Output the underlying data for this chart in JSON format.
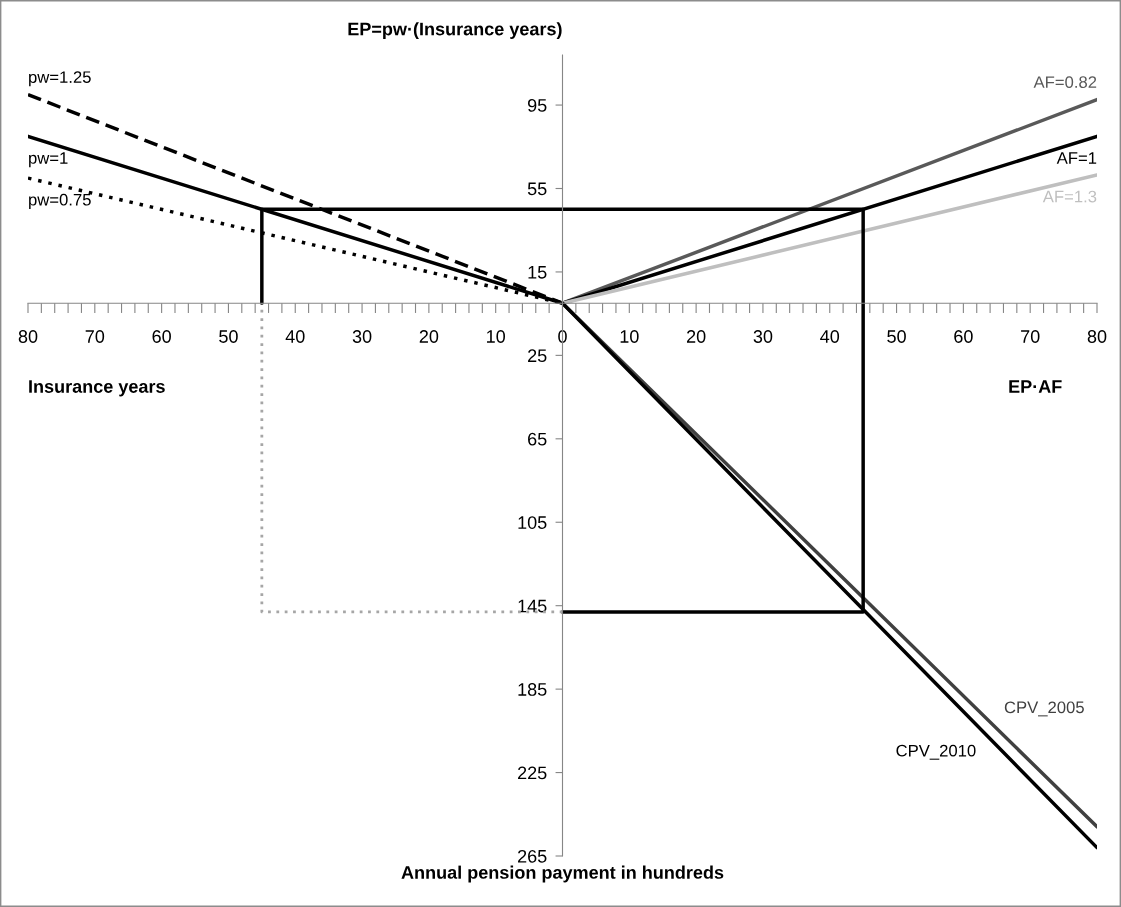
{
  "chart_data": {
    "type": "line",
    "ylabel": "EP=pw·(Insurance years)",
    "xlabel": "EP·AF",
    "annotations": [
      "Insurance years",
      "Annual pension payment in hundreds"
    ],
    "xlim": [
      -80,
      80
    ],
    "ylim": [
      -265,
      119
    ],
    "xticks": [
      {
        "value": -80,
        "label": "80"
      },
      {
        "value": -78,
        "label": null
      },
      {
        "value": -76,
        "label": null
      },
      {
        "value": -74,
        "label": null
      },
      {
        "value": -72,
        "label": null
      },
      {
        "value": -70,
        "label": "70"
      },
      {
        "value": -68,
        "label": null
      },
      {
        "value": -66,
        "label": null
      },
      {
        "value": -64,
        "label": null
      },
      {
        "value": -62,
        "label": null
      },
      {
        "value": -60,
        "label": "60"
      },
      {
        "value": -58,
        "label": null
      },
      {
        "value": -56,
        "label": null
      },
      {
        "value": -54,
        "label": null
      },
      {
        "value": -52,
        "label": null
      },
      {
        "value": -50,
        "label": "50"
      },
      {
        "value": -48,
        "label": null
      },
      {
        "value": -46,
        "label": null
      },
      {
        "value": -44,
        "label": null
      },
      {
        "value": -42,
        "label": null
      },
      {
        "value": -40,
        "label": "40"
      },
      {
        "value": -38,
        "label": null
      },
      {
        "value": -36,
        "label": null
      },
      {
        "value": -34,
        "label": null
      },
      {
        "value": -32,
        "label": null
      },
      {
        "value": -30,
        "label": "30"
      },
      {
        "value": -28,
        "label": null
      },
      {
        "value": -26,
        "label": null
      },
      {
        "value": -24,
        "label": null
      },
      {
        "value": -22,
        "label": null
      },
      {
        "value": -20,
        "label": "20"
      },
      {
        "value": -18,
        "label": null
      },
      {
        "value": -16,
        "label": null
      },
      {
        "value": -14,
        "label": null
      },
      {
        "value": -12,
        "label": null
      },
      {
        "value": -10,
        "label": "10"
      },
      {
        "value": -8,
        "label": null
      },
      {
        "value": -6,
        "label": null
      },
      {
        "value": -4,
        "label": null
      },
      {
        "value": -2,
        "label": null
      },
      0,
      {
        "value": 2,
        "label": null
      },
      {
        "value": 4,
        "label": null
      },
      {
        "value": 6,
        "label": null
      },
      {
        "value": 8,
        "label": null
      },
      10,
      {
        "value": 12,
        "label": null
      },
      {
        "value": 14,
        "label": null
      },
      {
        "value": 16,
        "label": null
      },
      {
        "value": 18,
        "label": null
      },
      20,
      {
        "value": 22,
        "label": null
      },
      {
        "value": 24,
        "label": null
      },
      {
        "value": 26,
        "label": null
      },
      {
        "value": 28,
        "label": null
      },
      30,
      {
        "value": 32,
        "label": null
      },
      {
        "value": 34,
        "label": null
      },
      {
        "value": 36,
        "label": null
      },
      {
        "value": 38,
        "label": null
      },
      40,
      {
        "value": 42,
        "label": null
      },
      {
        "value": 44,
        "label": null
      },
      {
        "value": 46,
        "label": null
      },
      {
        "value": 48,
        "label": null
      },
      50,
      {
        "value": 52,
        "label": null
      },
      {
        "value": 54,
        "label": null
      },
      {
        "value": 56,
        "label": null
      },
      {
        "value": 58,
        "label": null
      },
      60,
      {
        "value": 62,
        "label": null
      },
      {
        "value": 64,
        "label": null
      },
      {
        "value": 66,
        "label": null
      },
      {
        "value": 68,
        "label": null
      },
      70,
      {
        "value": 72,
        "label": null
      },
      {
        "value": 74,
        "label": null
      },
      {
        "value": 76,
        "label": null
      },
      {
        "value": 78,
        "label": null
      },
      80
    ],
    "yticks": [
      95,
      55,
      15,
      {
        "value": -25,
        "label": "25"
      },
      {
        "value": -65,
        "label": "65"
      },
      {
        "value": -105,
        "label": "105"
      },
      {
        "value": -145,
        "label": "145"
      },
      {
        "value": -185,
        "label": "185"
      },
      {
        "value": -225,
        "label": "225"
      },
      {
        "value": -265,
        "label": "265"
      }
    ],
    "series": [
      {
        "name": "pw=1.25",
        "color": "#000000",
        "line_style": "dashed",
        "x": [
          -80,
          0
        ],
        "values": [
          100,
          0
        ]
      },
      {
        "name": "pw=1",
        "color": "#000000",
        "line_style": "solid",
        "x": [
          -80,
          0
        ],
        "values": [
          80,
          0
        ]
      },
      {
        "name": "pw=0.75",
        "color": "#000000",
        "line_style": "dotted",
        "x": [
          -80,
          0
        ],
        "values": [
          60,
          0
        ]
      },
      {
        "name": "AF=0.82",
        "color": "#595959",
        "line_style": "solid",
        "x": [
          0,
          80
        ],
        "values": [
          0,
          97.6
        ]
      },
      {
        "name": "AF=1",
        "color": "#000000",
        "line_style": "solid",
        "x": [
          0,
          80
        ],
        "values": [
          0,
          80
        ]
      },
      {
        "name": "AF=1.3",
        "color": "#bfbfbf",
        "line_style": "solid",
        "x": [
          0,
          80
        ],
        "values": [
          0,
          61.5
        ]
      },
      {
        "name": "CPV_2005",
        "color": "#404040",
        "line_style": "solid",
        "x": [
          0,
          80
        ],
        "values": [
          0,
          -251
        ]
      },
      {
        "name": "CPV_2010",
        "color": "#000000",
        "line_style": "solid",
        "x": [
          0,
          80
        ],
        "values": [
          0,
          -261
        ]
      },
      {
        "color": "#000000",
        "line_style": "solid",
        "x": [
          -45,
          -45,
          45,
          45,
          0
        ],
        "values": [
          0,
          45,
          45,
          -148,
          -148
        ]
      },
      {
        "color": "#a6a6a6",
        "line_style": "dotted",
        "x": [
          0,
          -45,
          -45
        ],
        "values": [
          -148,
          -148,
          0
        ]
      }
    ]
  }
}
